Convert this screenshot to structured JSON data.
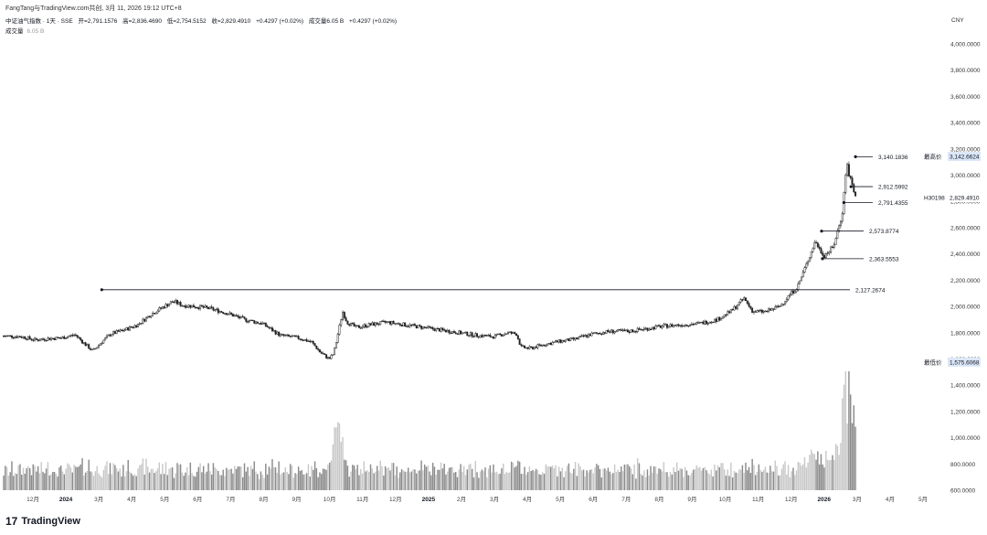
{
  "header": {
    "attribution": "FangTang与TradingView.com共创, 3月 11, 2026 19:12 UTC+8",
    "symbol": "中证油气指数 · 1天 · SSE",
    "open": "开=2,791.1576",
    "high": "高=2,836.4690",
    "low": "低=2,754.5152",
    "close": "收=2,829.4910",
    "change": "+0.4297 (+0.02%)",
    "volume": "成交量6.05 B",
    "volume_change": "+0.4297 (+0.02%)",
    "vol_label": "成交量",
    "vol_value": "6.05 B",
    "currency": "CNY"
  },
  "footer": {
    "logo": "17",
    "brand": "TradingView"
  },
  "chart_data": {
    "type": "candlestick",
    "y_axis": {
      "ticks": [
        600,
        800,
        1000,
        1200,
        1400,
        1600,
        1800,
        2000,
        2200,
        2400,
        2600,
        2800,
        3000,
        3200,
        3400,
        3600,
        3800,
        4000
      ],
      "tick_labels": [
        "600.0000",
        "800.0000",
        "1,000.0000",
        "1,200.0000",
        "1,400.0000",
        "1,600.0000",
        "1,800.0000",
        "2,000.0000",
        "2,200.0000",
        "2,400.0000",
        "2,600.0000",
        "2,800.0000",
        "3,000.0000",
        "3,200.0000",
        "3,400.0000",
        "3,600.0000",
        "3,800.0000",
        "4,000.0000"
      ],
      "range": [
        600,
        4050
      ]
    },
    "x_axis": {
      "labels": [
        "12月",
        "2024",
        "3月",
        "4月",
        "5月",
        "6月",
        "7月",
        "8月",
        "9月",
        "10月",
        "11月",
        "12月",
        "2025",
        "2月",
        "3月",
        "4月",
        "5月",
        "6月",
        "7月",
        "8月",
        "9月",
        "10月",
        "11月",
        "12月",
        "2026",
        "3月",
        "4月",
        "5月"
      ]
    },
    "price_path": [
      [
        0,
        1775
      ],
      [
        0.02,
        1770
      ],
      [
        0.035,
        1745
      ],
      [
        0.05,
        1755
      ],
      [
        0.065,
        1760
      ],
      [
        0.08,
        1785
      ],
      [
        0.09,
        1720
      ],
      [
        0.1,
        1660
      ],
      [
        0.11,
        1730
      ],
      [
        0.12,
        1790
      ],
      [
        0.135,
        1820
      ],
      [
        0.15,
        1860
      ],
      [
        0.165,
        1940
      ],
      [
        0.175,
        1980
      ],
      [
        0.19,
        2040
      ],
      [
        0.2,
        2010
      ],
      [
        0.215,
        2000
      ],
      [
        0.23,
        1985
      ],
      [
        0.25,
        1950
      ],
      [
        0.27,
        1900
      ],
      [
        0.29,
        1870
      ],
      [
        0.31,
        1780
      ],
      [
        0.33,
        1760
      ],
      [
        0.345,
        1730
      ],
      [
        0.355,
        1650
      ],
      [
        0.365,
        1600
      ],
      [
        0.37,
        1640
      ],
      [
        0.375,
        1800
      ],
      [
        0.38,
        1960
      ],
      [
        0.385,
        1880
      ],
      [
        0.395,
        1840
      ],
      [
        0.41,
        1860
      ],
      [
        0.43,
        1880
      ],
      [
        0.45,
        1860
      ],
      [
        0.47,
        1840
      ],
      [
        0.49,
        1820
      ],
      [
        0.51,
        1800
      ],
      [
        0.53,
        1780
      ],
      [
        0.55,
        1770
      ],
      [
        0.565,
        1800
      ],
      [
        0.575,
        1790
      ],
      [
        0.58,
        1690
      ],
      [
        0.59,
        1680
      ],
      [
        0.6,
        1700
      ],
      [
        0.62,
        1730
      ],
      [
        0.64,
        1750
      ],
      [
        0.66,
        1790
      ],
      [
        0.68,
        1810
      ],
      [
        0.7,
        1810
      ],
      [
        0.72,
        1830
      ],
      [
        0.74,
        1850
      ],
      [
        0.76,
        1860
      ],
      [
        0.78,
        1870
      ],
      [
        0.8,
        1900
      ],
      [
        0.815,
        1960
      ],
      [
        0.83,
        2060
      ],
      [
        0.84,
        1960
      ],
      [
        0.855,
        1960
      ],
      [
        0.87,
        2000
      ],
      [
        0.88,
        2080
      ],
      [
        0.89,
        2150
      ],
      [
        0.9,
        2320
      ],
      [
        0.91,
        2500
      ],
      [
        0.915,
        2430
      ],
      [
        0.92,
        2390
      ],
      [
        0.93,
        2450
      ],
      [
        0.94,
        2700
      ],
      [
        0.945,
        3100
      ],
      [
        0.948,
        3000
      ],
      [
        0.951,
        2940
      ],
      [
        0.955,
        2829.49
      ]
    ],
    "annotations": [
      {
        "label": "2,127.2674",
        "value": 2127.2674
      },
      {
        "label": "2,363.5553",
        "value": 2363.5553
      },
      {
        "label": "2,573.8774",
        "value": 2573.8774
      },
      {
        "label": "2,791.4355",
        "value": 2791.4355
      },
      {
        "label": "2,912.5992",
        "value": 2912.5992
      },
      {
        "label": "3,140.1836",
        "value": 3140.1836
      }
    ],
    "price_tags": [
      {
        "label": "最高价",
        "value_label": "3,142.6624",
        "value": 3142.6624
      },
      {
        "label": "H30198",
        "value_label": "2,829.4910",
        "value": 2829.491
      },
      {
        "label": "最低价",
        "value_label": "1,575.6068",
        "value": 1575.6068
      }
    ]
  }
}
